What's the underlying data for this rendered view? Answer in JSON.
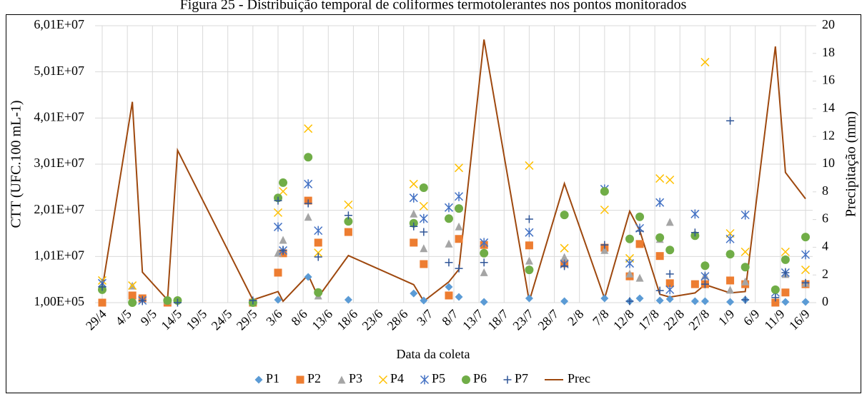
{
  "chart_data": {
    "type": "combo",
    "title": "Figura 25 - Distribuição temporal de coliformes termotolerantes nos pontos monitorados",
    "xlabel": "Data da coleta",
    "ylabel": "CTT (UFC.100 mL-1)",
    "y2label": "Precipitação (mm)",
    "x": [
      "29/4",
      "5/5",
      "7/5",
      "12/5",
      "14/5",
      "29/5",
      "3/6",
      "4/6",
      "9/6",
      "11/6",
      "17/6",
      "30/6",
      "2/7",
      "7/7",
      "9/7",
      "14/7",
      "23/7",
      "30/7",
      "7/8",
      "12/8",
      "14/8",
      "18/8",
      "20/8",
      "25/8",
      "27/8",
      "1/9",
      "4/9",
      "10/9",
      "12/9",
      "16/9"
    ],
    "xlim": [
      "29/4",
      "16/9"
    ],
    "xticks": [
      "29/4",
      "4/5",
      "9/5",
      "14/5",
      "19/5",
      "24/5",
      "29/5",
      "3/6",
      "8/6",
      "13/6",
      "18/6",
      "23/6",
      "28/6",
      "3/7",
      "8/7",
      "13/7",
      "18/7",
      "23/7",
      "28/7",
      "2/8",
      "7/8",
      "12/8",
      "17/8",
      "22/8",
      "27/8",
      "1/9",
      "6/9",
      "11/9",
      "16/9"
    ],
    "ylim": [
      100000,
      60100000
    ],
    "yticks": [
      {
        "value": 100000,
        "label": "1,00E+05"
      },
      {
        "value": 10100000,
        "label": "1,01E+07"
      },
      {
        "value": 20100000,
        "label": "2,01E+07"
      },
      {
        "value": 30100000,
        "label": "3,01E+07"
      },
      {
        "value": 40100000,
        "label": "4,01E+07"
      },
      {
        "value": 50100000,
        "label": "5,01E+07"
      },
      {
        "value": 60100000,
        "label": "6,01E+07"
      }
    ],
    "y2lim": [
      0,
      20
    ],
    "y2ticks": [
      0,
      2,
      4,
      6,
      8,
      10,
      12,
      14,
      16,
      18,
      20
    ],
    "grid": true,
    "legend": "bottom",
    "series": [
      {
        "name": "P1",
        "color": "#5b9bd5",
        "marker": "diamond",
        "values": [
          null,
          null,
          null,
          null,
          null,
          null,
          720000,
          null,
          5670000,
          null,
          720000,
          2100000,
          560000,
          3500000,
          1340000,
          250000,
          1030000,
          410000,
          1030000,
          410000,
          1030000,
          560000,
          870000,
          410000,
          410000,
          250000,
          720000,
          100000,
          250000,
          250000
        ]
      },
      {
        "name": "P2",
        "color": "#ed7d31",
        "marker": "square",
        "values": [
          100000,
          1650000,
          1030000,
          100000,
          null,
          100000,
          6600000,
          10800000,
          22200000,
          13100000,
          15400000,
          13100000,
          8450000,
          1650000,
          13900000,
          12600000,
          12500000,
          8600000,
          12000000,
          5800000,
          12800000,
          10200000,
          4300000,
          4100000,
          4100000,
          4900000,
          4100000,
          100000,
          2300000,
          4100000
        ]
      },
      {
        "name": "P3",
        "color": "#a5a5a5",
        "marker": "triangle",
        "values": [
          3500000,
          3800000,
          null,
          560000,
          null,
          null,
          10900000,
          13700000,
          18700000,
          1650000,
          null,
          19400000,
          11900000,
          12900000,
          16600000,
          6700000,
          9200000,
          10000000,
          11500000,
          6400000,
          5500000,
          13900000,
          17600000,
          null,
          6000000,
          2900000,
          4700000,
          null,
          6300000,
          4400000
        ]
      },
      {
        "name": "P4",
        "color": "#ffc000",
        "marker": "x",
        "values": [
          4900000,
          3800000,
          null,
          null,
          null,
          null,
          19600000,
          24200000,
          37800000,
          10900000,
          21300000,
          25800000,
          21000000,
          null,
          29300000,
          null,
          29800000,
          11900000,
          20200000,
          9700000,
          null,
          27000000,
          26700000,
          null,
          52200000,
          15100000,
          11100000,
          null,
          11100000,
          7200000
        ]
      },
      {
        "name": "P5",
        "color": "#4472c4",
        "marker": "star",
        "values": [
          4300000,
          null,
          560000,
          null,
          null,
          null,
          16500000,
          11400000,
          25800000,
          15700000,
          null,
          22800000,
          18300000,
          20700000,
          23100000,
          13100000,
          15300000,
          8450000,
          24700000,
          8600000,
          16200000,
          21800000,
          2900000,
          19300000,
          5800000,
          13900000,
          19100000,
          2300000,
          6600000,
          10500000
        ]
      },
      {
        "name": "P6",
        "color": "#70ad47",
        "marker": "circle",
        "values": [
          2900000,
          100000,
          null,
          560000,
          560000,
          100000,
          22800000,
          26100000,
          31600000,
          2300000,
          17700000,
          17300000,
          25000000,
          18300000,
          20500000,
          10800000,
          7200000,
          19100000,
          24200000,
          13900000,
          18700000,
          14200000,
          11500000,
          14600000,
          8100000,
          10600000,
          7800000,
          2900000,
          9400000,
          14300000
        ]
      },
      {
        "name": "P7",
        "color": "#2f5597",
        "marker": "plus",
        "values": [
          3500000,
          null,
          560000,
          null,
          100000,
          560000,
          22200000,
          11400000,
          21600000,
          10000000,
          19000000,
          16600000,
          15400000,
          8800000,
          7500000,
          8800000,
          18200000,
          8000000,
          12600000,
          400000,
          15600000,
          2700000,
          6300000,
          15300000,
          4100000,
          39500000,
          720000,
          1200000,
          6600000,
          4400000
        ]
      },
      {
        "name": "Prec",
        "color": "#9e480e",
        "marker": "line",
        "axis": "y2",
        "values": [
          1.0,
          14.5,
          2.2,
          0.2,
          11.0,
          0.2,
          0.8,
          0.1,
          2.0,
          0.4,
          3.4,
          1.3,
          0.1,
          1.5,
          2.4,
          19.0,
          0.1,
          8.6,
          0.3,
          6.6,
          5.2,
          0.6,
          0.4,
          0.7,
          1.3,
          0.7,
          0.8,
          18.5,
          9.4,
          7.5
        ]
      }
    ]
  }
}
